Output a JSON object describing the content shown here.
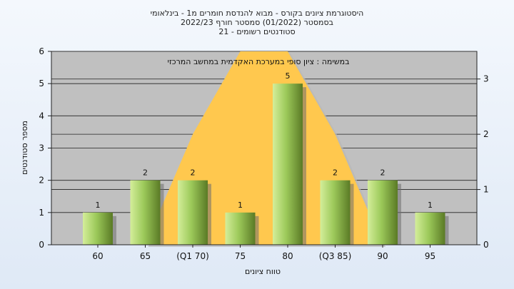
{
  "chart_data": {
    "type": "bar",
    "title_lines": [
      "היסטוגרמת ציונים בקורס - מבוא להנדסת חומרים מ1 - בינלאומי",
      "בסמסטר  (01/2022)  סמסטר חורף  2022/23",
      "סטודנטים רשומים - 21"
    ],
    "annotation": "במשימה : ציון סופי במערכת האקדמית במחשב המרכזי",
    "xlabel": "טווח ציונים",
    "ylabel": "מספר סטודנטים",
    "categories": [
      "60",
      "65",
      "(Q1 70)",
      "75",
      "80",
      "(Q3 85)",
      "90",
      "95"
    ],
    "values": [
      1,
      2,
      2,
      1,
      5,
      2,
      2,
      1
    ],
    "ylim": [
      0,
      6
    ],
    "yticks": [
      "0",
      "1",
      "2",
      "3",
      "4",
      "5",
      "6"
    ],
    "y2lim": [
      0,
      3.5
    ],
    "y2ticks": [
      "0",
      "1",
      "2",
      "3"
    ],
    "overlay": {
      "type": "area",
      "label": "distribution curve",
      "points": [
        [
          65,
          0
        ],
        [
          70,
          2
        ],
        [
          75,
          3.5
        ],
        [
          80,
          3.5
        ],
        [
          85,
          2
        ],
        [
          90,
          0
        ]
      ]
    },
    "colors": {
      "bar_light": "#d4ee9a",
      "bar_mid": "#9cc95a",
      "bar_dark": "#5a7a25",
      "overlay_fill": "#ffc84e",
      "overlay_shadow": "#b8b8b8",
      "plot_bg": "#c0c0c0"
    },
    "grid": true
  }
}
